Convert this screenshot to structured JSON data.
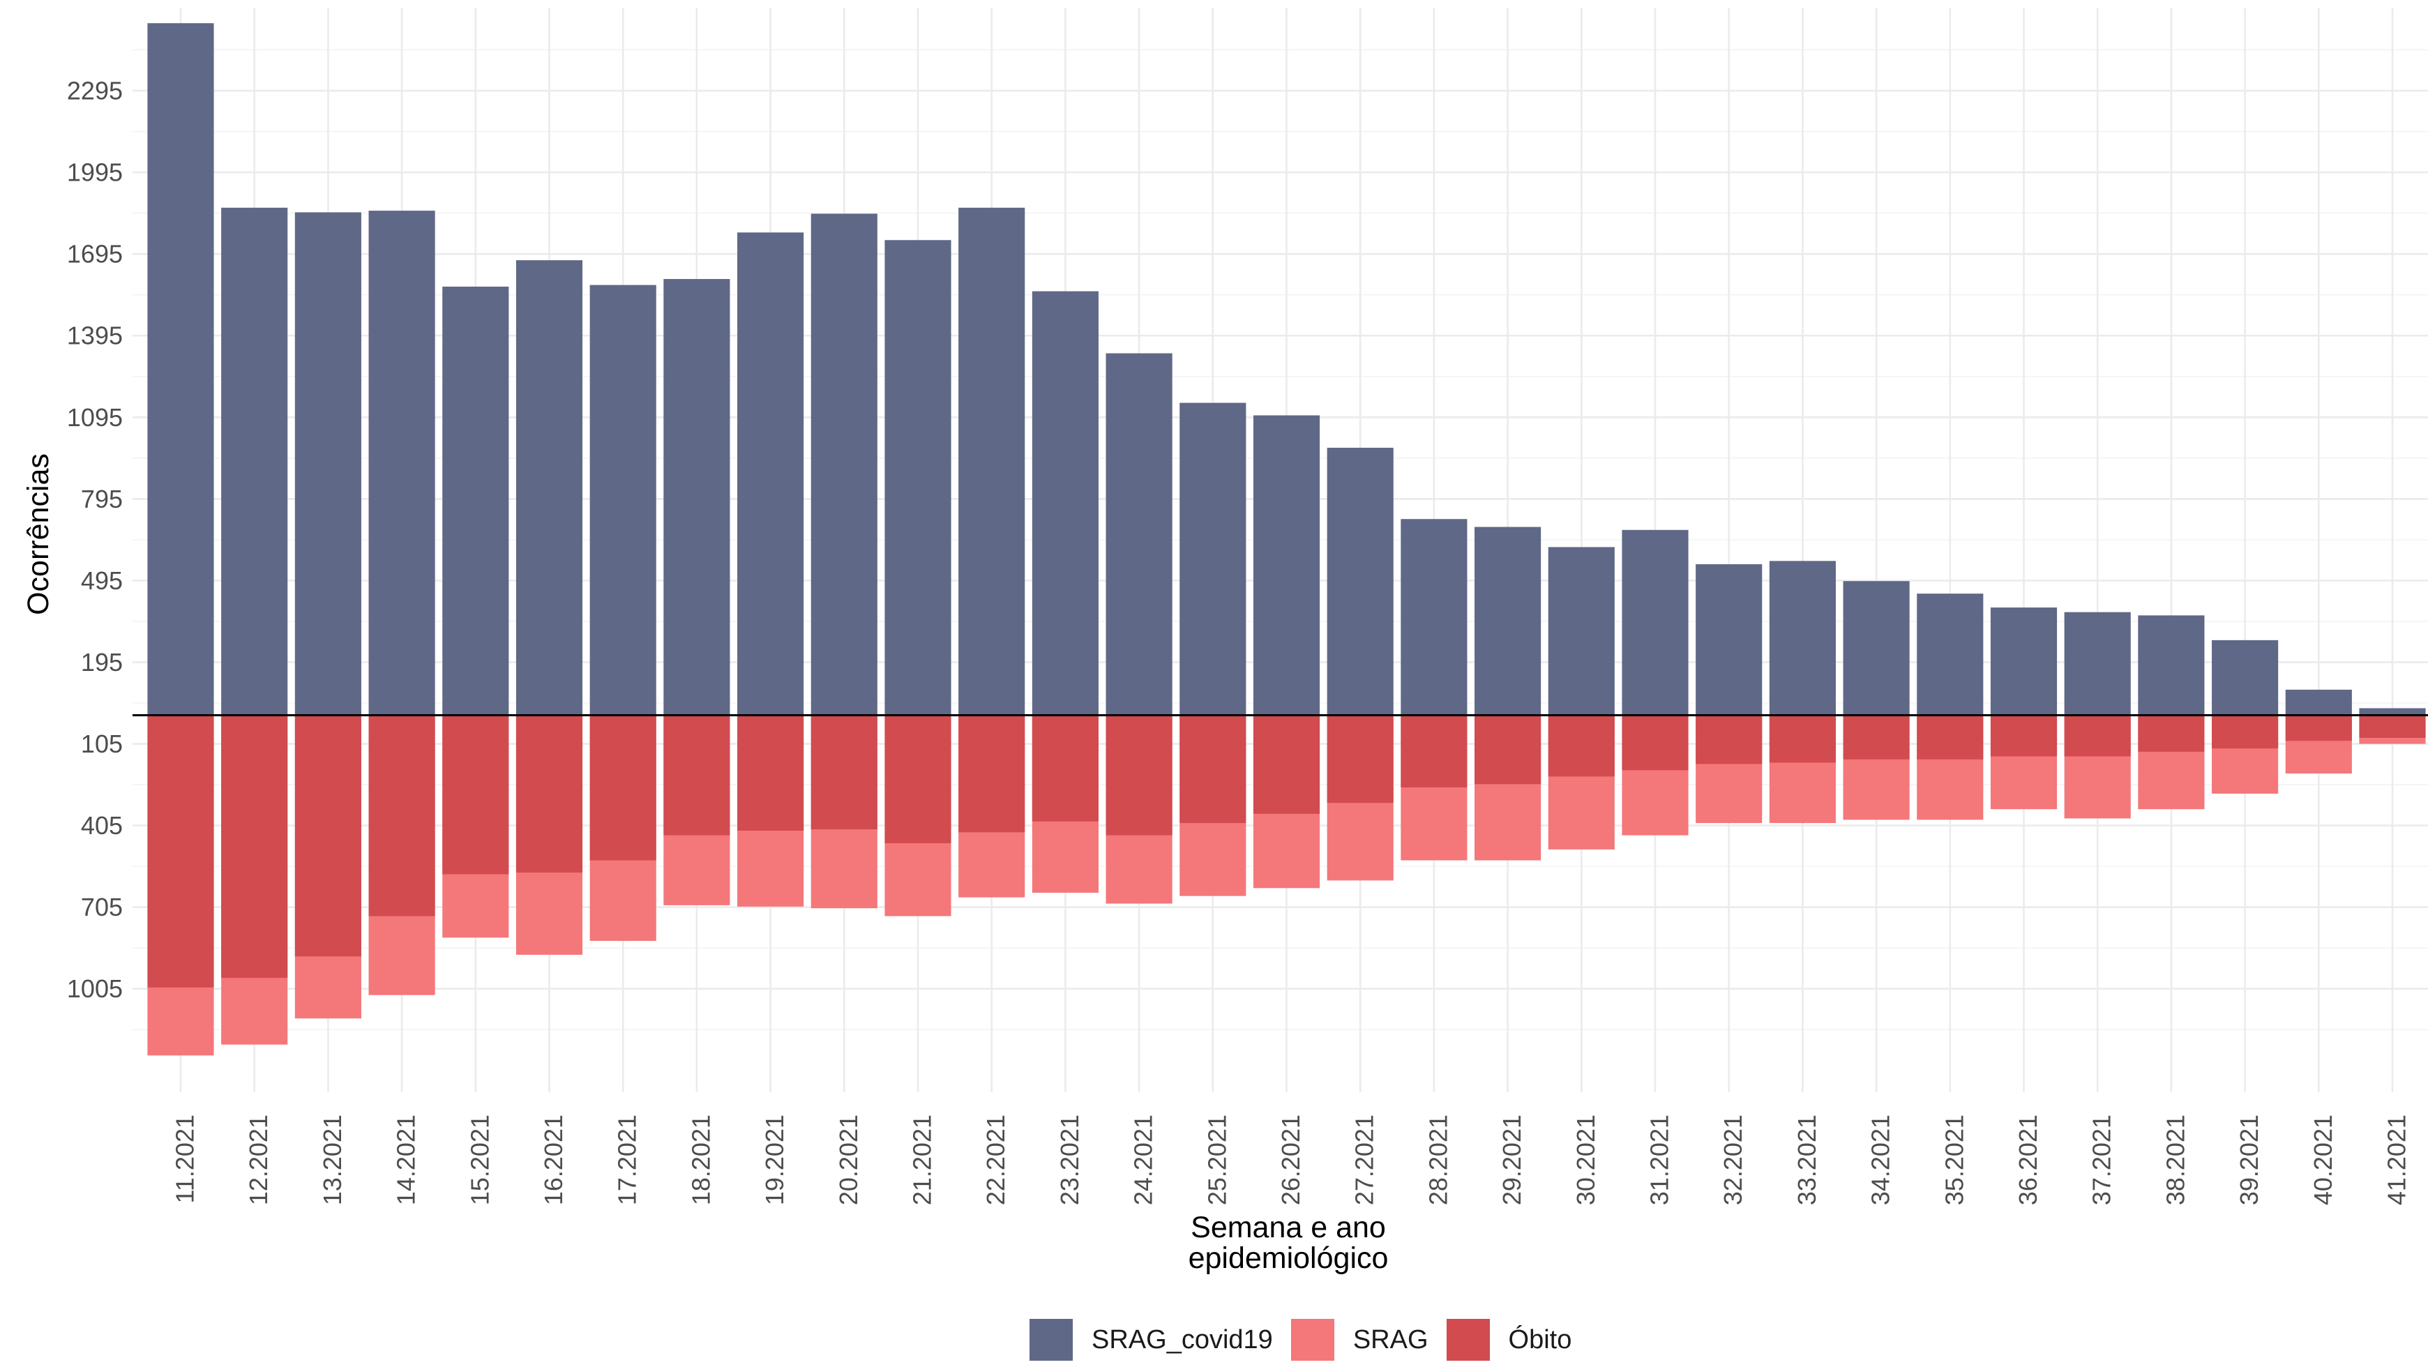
{
  "chart_data": {
    "type": "bar",
    "ylabel": "Ocorrências",
    "xlabel": [
      "Semana e ano",
      "epidemiológico"
    ],
    "categories": [
      "11.2021",
      "12.2021",
      "13.2021",
      "14.2021",
      "15.2021",
      "16.2021",
      "17.2021",
      "18.2021",
      "19.2021",
      "20.2021",
      "21.2021",
      "22.2021",
      "23.2021",
      "24.2021",
      "25.2021",
      "26.2021",
      "27.2021",
      "28.2021",
      "29.2021",
      "30.2021",
      "31.2021",
      "32.2021",
      "33.2021",
      "34.2021",
      "35.2021",
      "36.2021",
      "37.2021",
      "38.2021",
      "39.2021",
      "40.2021",
      "41.2021"
    ],
    "series": [
      {
        "name": "SRAG_covid19",
        "direction": "up",
        "color": "#5f6886",
        "values": [
          2543,
          1865,
          1848,
          1854,
          1575,
          1672,
          1581,
          1603,
          1774,
          1843,
          1746,
          1865,
          1558,
          1330,
          1148,
          1102,
          983,
          721,
          692,
          618,
          681,
          555,
          567,
          493,
          447,
          396,
          379,
          367,
          276,
          94,
          26
        ]
      },
      {
        "name": "SRAG",
        "direction": "down",
        "color": "#f4777a",
        "values": [
          1250,
          1210,
          1114,
          1028,
          817,
          880,
          829,
          698,
          703,
          709,
          738,
          669,
          652,
          692,
          664,
          635,
          607,
          533,
          533,
          493,
          441,
          396,
          396,
          384,
          384,
          345,
          379,
          345,
          288,
          214,
          105
        ]
      },
      {
        "name": "Óbito",
        "direction": "down",
        "color": "#d14b4f",
        "values": [
          1000,
          965,
          886,
          738,
          584,
          578,
          533,
          441,
          424,
          419,
          470,
          430,
          390,
          441,
          396,
          362,
          322,
          265,
          253,
          225,
          202,
          179,
          174,
          162,
          162,
          151,
          151,
          134,
          122,
          94,
          83
        ]
      }
    ],
    "yticks": [
      2295,
      1995,
      1695,
      1395,
      1095,
      795,
      495,
      195,
      -105,
      -405,
      -705,
      -1005
    ],
    "ytick_labels": [
      "2295",
      "1995",
      "1695",
      "1395",
      "1095",
      "795",
      "495",
      "195",
      "105",
      "405",
      "705",
      "1005"
    ],
    "ylim": [
      -1385,
      2600
    ],
    "grid": true,
    "zero_line": true,
    "legend_position": "bottom"
  }
}
